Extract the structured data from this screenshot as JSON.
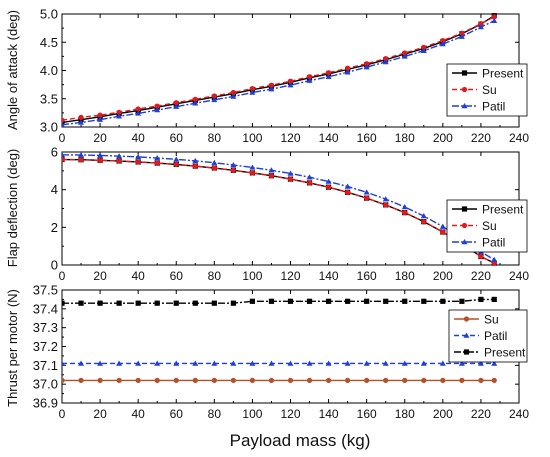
{
  "chart_data": [
    {
      "type": "line",
      "ylabel": "Angle of attack (deg)",
      "xlim": [
        0,
        240
      ],
      "ylim": [
        3.0,
        5.0
      ],
      "xticks": [
        0,
        20,
        40,
        60,
        80,
        100,
        120,
        140,
        160,
        180,
        200,
        220,
        240
      ],
      "yticks": [
        "3.0",
        "3.5",
        "4.0",
        "4.5",
        "5.0"
      ],
      "legend_position": "right-middle",
      "series": [
        {
          "name": "Present",
          "color": "#000000",
          "marker": "square",
          "dash": "solid",
          "x": [
            0,
            10,
            20,
            30,
            40,
            50,
            60,
            70,
            80,
            90,
            100,
            110,
            120,
            130,
            140,
            150,
            160,
            170,
            180,
            190,
            200,
            210,
            220,
            227
          ],
          "y": [
            3.08,
            3.13,
            3.18,
            3.24,
            3.29,
            3.35,
            3.41,
            3.47,
            3.53,
            3.59,
            3.66,
            3.72,
            3.79,
            3.87,
            3.94,
            4.02,
            4.1,
            4.19,
            4.29,
            4.39,
            4.51,
            4.65,
            4.82,
            4.97
          ]
        },
        {
          "name": "Su",
          "color": "#e31a1c",
          "marker": "circle",
          "dash": "dash",
          "x": [
            0,
            10,
            20,
            30,
            40,
            50,
            60,
            70,
            80,
            90,
            100,
            110,
            120,
            130,
            140,
            150,
            160,
            170,
            180,
            190,
            200,
            210,
            220,
            227
          ],
          "y": [
            3.12,
            3.17,
            3.21,
            3.26,
            3.32,
            3.37,
            3.43,
            3.49,
            3.55,
            3.61,
            3.68,
            3.74,
            3.81,
            3.89,
            3.96,
            4.04,
            4.12,
            4.21,
            4.31,
            4.41,
            4.53,
            4.66,
            4.83,
            4.95
          ]
        },
        {
          "name": "Patil",
          "color": "#1f3fd6",
          "marker": "triangle",
          "dash": "dashdot",
          "x": [
            0,
            10,
            20,
            30,
            40,
            50,
            60,
            70,
            80,
            90,
            100,
            110,
            120,
            130,
            140,
            150,
            160,
            170,
            180,
            190,
            200,
            210,
            220,
            227
          ],
          "y": [
            3.04,
            3.08,
            3.13,
            3.19,
            3.24,
            3.3,
            3.36,
            3.42,
            3.48,
            3.54,
            3.61,
            3.67,
            3.74,
            3.82,
            3.89,
            3.97,
            4.06,
            4.15,
            4.25,
            4.35,
            4.47,
            4.6,
            4.77,
            4.88
          ]
        }
      ]
    },
    {
      "type": "line",
      "ylabel": "Flap deflection (deg)",
      "xlim": [
        0,
        240
      ],
      "ylim": [
        0,
        6
      ],
      "xticks": [
        0,
        20,
        40,
        60,
        80,
        100,
        120,
        140,
        160,
        180,
        200,
        220,
        240
      ],
      "yticks": [
        "0",
        "2",
        "4",
        "6"
      ],
      "legend_position": "right-middle",
      "series": [
        {
          "name": "Present",
          "color": "#000000",
          "marker": "square",
          "dash": "solid",
          "x": [
            0,
            10,
            20,
            30,
            40,
            50,
            60,
            70,
            80,
            90,
            100,
            110,
            120,
            130,
            140,
            150,
            160,
            170,
            180,
            190,
            200,
            210,
            220,
            227
          ],
          "y": [
            5.6,
            5.59,
            5.56,
            5.52,
            5.47,
            5.41,
            5.34,
            5.25,
            5.15,
            5.03,
            4.89,
            4.74,
            4.56,
            4.36,
            4.13,
            3.86,
            3.55,
            3.19,
            2.78,
            2.3,
            1.75,
            1.12,
            0.45,
            0.1
          ]
        },
        {
          "name": "Su",
          "color": "#e31a1c",
          "marker": "circle",
          "dash": "dash",
          "x": [
            0,
            10,
            20,
            30,
            40,
            50,
            60,
            70,
            80,
            90,
            100,
            110,
            120,
            130,
            140,
            150,
            160,
            170,
            180,
            190,
            200,
            210,
            220,
            227
          ],
          "y": [
            5.6,
            5.59,
            5.56,
            5.52,
            5.47,
            5.41,
            5.34,
            5.25,
            5.15,
            5.03,
            4.89,
            4.74,
            4.56,
            4.36,
            4.13,
            3.86,
            3.55,
            3.19,
            2.78,
            2.3,
            1.75,
            1.12,
            0.45,
            0.1
          ]
        },
        {
          "name": "Patil",
          "color": "#1f3fd6",
          "marker": "triangle",
          "dash": "dashdot",
          "x": [
            0,
            10,
            20,
            30,
            40,
            50,
            60,
            70,
            80,
            90,
            100,
            110,
            120,
            130,
            140,
            150,
            160,
            170,
            180,
            190,
            200,
            210,
            220,
            227
          ],
          "y": [
            5.85,
            5.84,
            5.82,
            5.78,
            5.74,
            5.68,
            5.61,
            5.53,
            5.43,
            5.31,
            5.18,
            5.03,
            4.86,
            4.66,
            4.43,
            4.17,
            3.86,
            3.5,
            3.08,
            2.6,
            2.04,
            1.4,
            0.7,
            0.28
          ]
        }
      ]
    },
    {
      "type": "line",
      "ylabel": "Thrust per motor (N)",
      "xlabel": "Payload mass (kg)",
      "xlim": [
        0,
        240
      ],
      "ylim": [
        36.9,
        37.5
      ],
      "xticks": [
        0,
        20,
        40,
        60,
        80,
        100,
        120,
        140,
        160,
        180,
        200,
        220,
        240
      ],
      "yticks": [
        "36.9",
        "37.0",
        "37.1",
        "37.2",
        "37.3",
        "37.4",
        "37.5"
      ],
      "legend_position": "top-right",
      "series": [
        {
          "name": "Su",
          "color": "#b5502a",
          "marker": "circle",
          "dash": "solid",
          "x": [
            0,
            10,
            20,
            30,
            40,
            50,
            60,
            70,
            80,
            90,
            100,
            110,
            120,
            130,
            140,
            150,
            160,
            170,
            180,
            190,
            200,
            210,
            220,
            227
          ],
          "y": [
            37.02,
            37.02,
            37.02,
            37.02,
            37.02,
            37.02,
            37.02,
            37.02,
            37.02,
            37.02,
            37.02,
            37.02,
            37.02,
            37.02,
            37.02,
            37.02,
            37.02,
            37.02,
            37.02,
            37.02,
            37.02,
            37.02,
            37.02,
            37.02
          ]
        },
        {
          "name": "Patil",
          "color": "#1f3fd6",
          "marker": "triangle",
          "dash": "dash",
          "x": [
            0,
            10,
            20,
            30,
            40,
            50,
            60,
            70,
            80,
            90,
            100,
            110,
            120,
            130,
            140,
            150,
            160,
            170,
            180,
            190,
            200,
            210,
            220,
            227
          ],
          "y": [
            37.11,
            37.11,
            37.11,
            37.11,
            37.11,
            37.11,
            37.11,
            37.11,
            37.11,
            37.11,
            37.11,
            37.11,
            37.11,
            37.11,
            37.11,
            37.11,
            37.11,
            37.11,
            37.11,
            37.11,
            37.11,
            37.11,
            37.11,
            37.11
          ]
        },
        {
          "name": "Present",
          "color": "#000000",
          "marker": "square",
          "dash": "dashdot",
          "x": [
            0,
            10,
            20,
            30,
            40,
            50,
            60,
            70,
            80,
            90,
            100,
            110,
            120,
            130,
            140,
            150,
            160,
            170,
            180,
            190,
            200,
            210,
            220,
            227
          ],
          "y": [
            37.43,
            37.43,
            37.43,
            37.43,
            37.43,
            37.43,
            37.43,
            37.43,
            37.43,
            37.43,
            37.44,
            37.44,
            37.44,
            37.44,
            37.44,
            37.44,
            37.44,
            37.44,
            37.44,
            37.44,
            37.44,
            37.44,
            37.45,
            37.45
          ]
        }
      ]
    }
  ]
}
